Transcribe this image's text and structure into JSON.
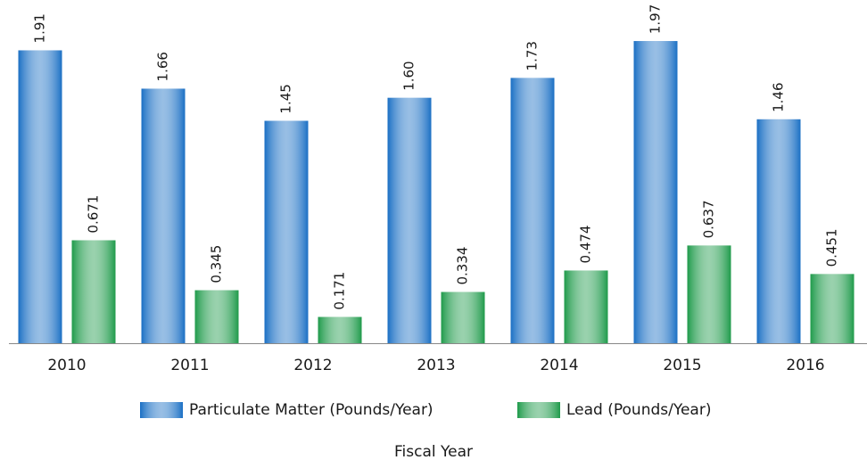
{
  "chart_data": {
    "type": "bar",
    "x_label": "Fiscal Year",
    "categories": [
      "2010",
      "2011",
      "2012",
      "2013",
      "2014",
      "2015",
      "2016"
    ],
    "series": [
      {
        "name": "Particulate Matter (Pounds/Year)",
        "color": "#1a6fc4",
        "values": [
          1.91,
          1.66,
          1.45,
          1.6,
          1.73,
          1.97,
          1.46
        ],
        "value_labels": [
          "1.91",
          "1.66",
          "1.45",
          "1.60",
          "1.73",
          "1.97",
          "1.46"
        ]
      },
      {
        "name": "Lead (Pounds/Year)",
        "color": "#1e9a4a",
        "values": [
          0.671,
          0.345,
          0.171,
          0.334,
          0.474,
          0.637,
          0.451
        ],
        "value_labels": [
          "0.671",
          "0.345",
          "0.171",
          "0.334",
          "0.474",
          "0.637",
          "0.451"
        ]
      }
    ],
    "legend": "bottom"
  }
}
